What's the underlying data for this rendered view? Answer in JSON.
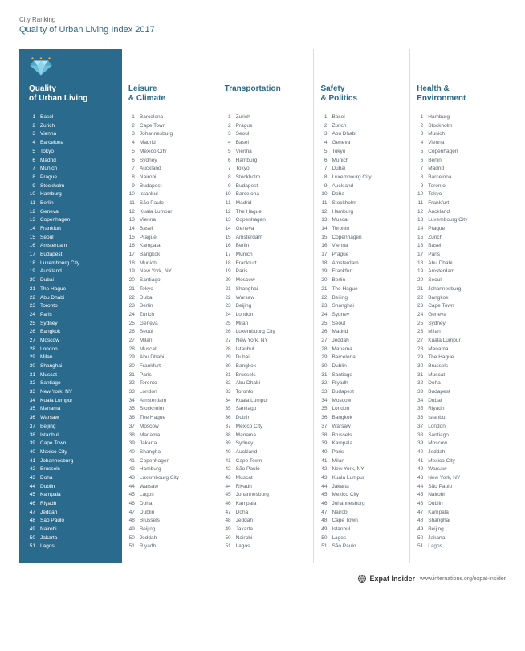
{
  "header": {
    "small": "City Ranking",
    "title": "Quality of Urban Living Index 2017"
  },
  "columns": [
    {
      "title_line1": "Quality",
      "title_line2": "of Urban Living",
      "featured": true,
      "cities": [
        "Basel",
        "Zurich",
        "Vienna",
        "Barcelona",
        "Tokyo",
        "Madrid",
        "Munich",
        "Prague",
        "Stockholm",
        "Hamburg",
        "Berlin",
        "Geneva",
        "Copenhagen",
        "Frankfurt",
        "Seoul",
        "Amsterdam",
        "Budapest",
        "Luxembourg City",
        "Auckland",
        "Dubai",
        "The Hague",
        "Abu Dhabi",
        "Toronto",
        "Paris",
        "Sydney",
        "Bangkok",
        "Moscow",
        "London",
        "Milan",
        "Shanghai",
        "Muscat",
        "Santiago",
        "New York, NY",
        "Kuala Lumpur",
        "Manama",
        "Warsaw",
        "Beijing",
        "Istanbul",
        "Cape Town",
        "Mexico City",
        "Johannesburg",
        "Brussels",
        "Doha",
        "Dublin",
        "Kampala",
        "Riyadh",
        "Jeddah",
        "São Paulo",
        "Nairobi",
        "Jakarta",
        "Lagos"
      ]
    },
    {
      "title_line1": "Leisure",
      "title_line2": "& Climate",
      "featured": false,
      "cities": [
        "Barcelona",
        "Cape Town",
        "Johannesburg",
        "Madrid",
        "Mexico City",
        "Sydney",
        "Auckland",
        "Nairobi",
        "Budapest",
        "Istanbul",
        "São Paulo",
        "Kuala Lumpur",
        "Vienna",
        "Basel",
        "Prague",
        "Kampala",
        "Bangkok",
        "Munich",
        "New York, NY",
        "Santiago",
        "Tokyo",
        "Dubai",
        "Berlin",
        "Zurich",
        "Geneva",
        "Seoul",
        "Milan",
        "Muscat",
        "Abu Dhabi",
        "Frankfurt",
        "Paris",
        "Toronto",
        "London",
        "Amsterdam",
        "Stockholm",
        "The Hague",
        "Moscow",
        "Manama",
        "Jakarta",
        "Shanghai",
        "Copenhagen",
        "Hamburg",
        "Luxembourg City",
        "Warsaw",
        "Lagos",
        "Doha",
        "Dublin",
        "Brussels",
        "Beijing",
        "Jeddah",
        "Riyadh"
      ]
    },
    {
      "title_line1": "Transportation",
      "title_line2": "",
      "featured": false,
      "cities": [
        "Zurich",
        "Prague",
        "Seoul",
        "Basel",
        "Vienna",
        "Hamburg",
        "Tokyo",
        "Stockholm",
        "Budapest",
        "Barcelona",
        "Madrid",
        "The Hague",
        "Copenhagen",
        "Geneva",
        "Amsterdam",
        "Berlin",
        "Munich",
        "Frankfurt",
        "Paris",
        "Moscow",
        "Shanghai",
        "Warsaw",
        "Beijing",
        "London",
        "Milan",
        "Luxembourg City",
        "New York, NY",
        "Istanbul",
        "Dubai",
        "Bangkok",
        "Brussels",
        "Abu Dhabi",
        "Toronto",
        "Kuala Lumpur",
        "Santiago",
        "Dublin",
        "Mexico City",
        "Manama",
        "Sydney",
        "Auckland",
        "Cape Town",
        "São Paulo",
        "Muscat",
        "Riyadh",
        "Johannesburg",
        "Kampala",
        "Doha",
        "Jeddah",
        "Jakarta",
        "Nairobi",
        "Lagos"
      ]
    },
    {
      "title_line1": "Safety",
      "title_line2": "& Politics",
      "featured": false,
      "cities": [
        "Basel",
        "Zurich",
        "Abu Dhabi",
        "Geneva",
        "Tokyo",
        "Munich",
        "Dubai",
        "Luxembourg City",
        "Auckland",
        "Doha",
        "Stockholm",
        "Hamburg",
        "Muscat",
        "Toronto",
        "Copenhagen",
        "Vienna",
        "Prague",
        "Amsterdam",
        "Frankfurt",
        "Berlin",
        "The Hague",
        "Beijing",
        "Shanghai",
        "Sydney",
        "Seoul",
        "Madrid",
        "Jeddah",
        "Manama",
        "Barcelona",
        "Dublin",
        "Santiago",
        "Riyadh",
        "Budapest",
        "Moscow",
        "London",
        "Bangkok",
        "Warsaw",
        "Brussels",
        "Kampala",
        "Paris",
        "Milan",
        "New York, NY",
        "Kuala Lumpur",
        "Jakarta",
        "Mexico City",
        "Johannesburg",
        "Nairobi",
        "Cape Town",
        "Istanbul",
        "Lagos",
        "São Paulo"
      ]
    },
    {
      "title_line1": "Health &",
      "title_line2": "Environment",
      "featured": false,
      "cities": [
        "Hamburg",
        "Stockholm",
        "Munich",
        "Vienna",
        "Copenhagen",
        "Berlin",
        "Madrid",
        "Barcelona",
        "Toronto",
        "Tokyo",
        "Frankfurt",
        "Auckland",
        "Luxembourg City",
        "Prague",
        "Zurich",
        "Basel",
        "Paris",
        "Abu Dhabi",
        "Amsterdam",
        "Seoul",
        "Johannesburg",
        "Bangkok",
        "Cape Town",
        "Geneva",
        "Sydney",
        "Milan",
        "Kuala Lumpur",
        "Manama",
        "The Hague",
        "Brussels",
        "Muscat",
        "Doha",
        "Budapest",
        "Dubai",
        "Riyadh",
        "Istanbul",
        "London",
        "Santiago",
        "Moscow",
        "Jeddah",
        "Mexico City",
        "Warsaw",
        "New York, NY",
        "São Paulo",
        "Nairobi",
        "Dublin",
        "Kampala",
        "Shanghai",
        "Beijing",
        "Jakarta",
        "Lagos"
      ]
    }
  ],
  "footer": {
    "brand": "Expat Insider",
    "url": "www.internations.org/expat-insider"
  },
  "colors": {
    "accent": "#2a6a8c",
    "divider": "#f0d9b8",
    "text": "#5a6570",
    "gold": "#e8a94a"
  }
}
